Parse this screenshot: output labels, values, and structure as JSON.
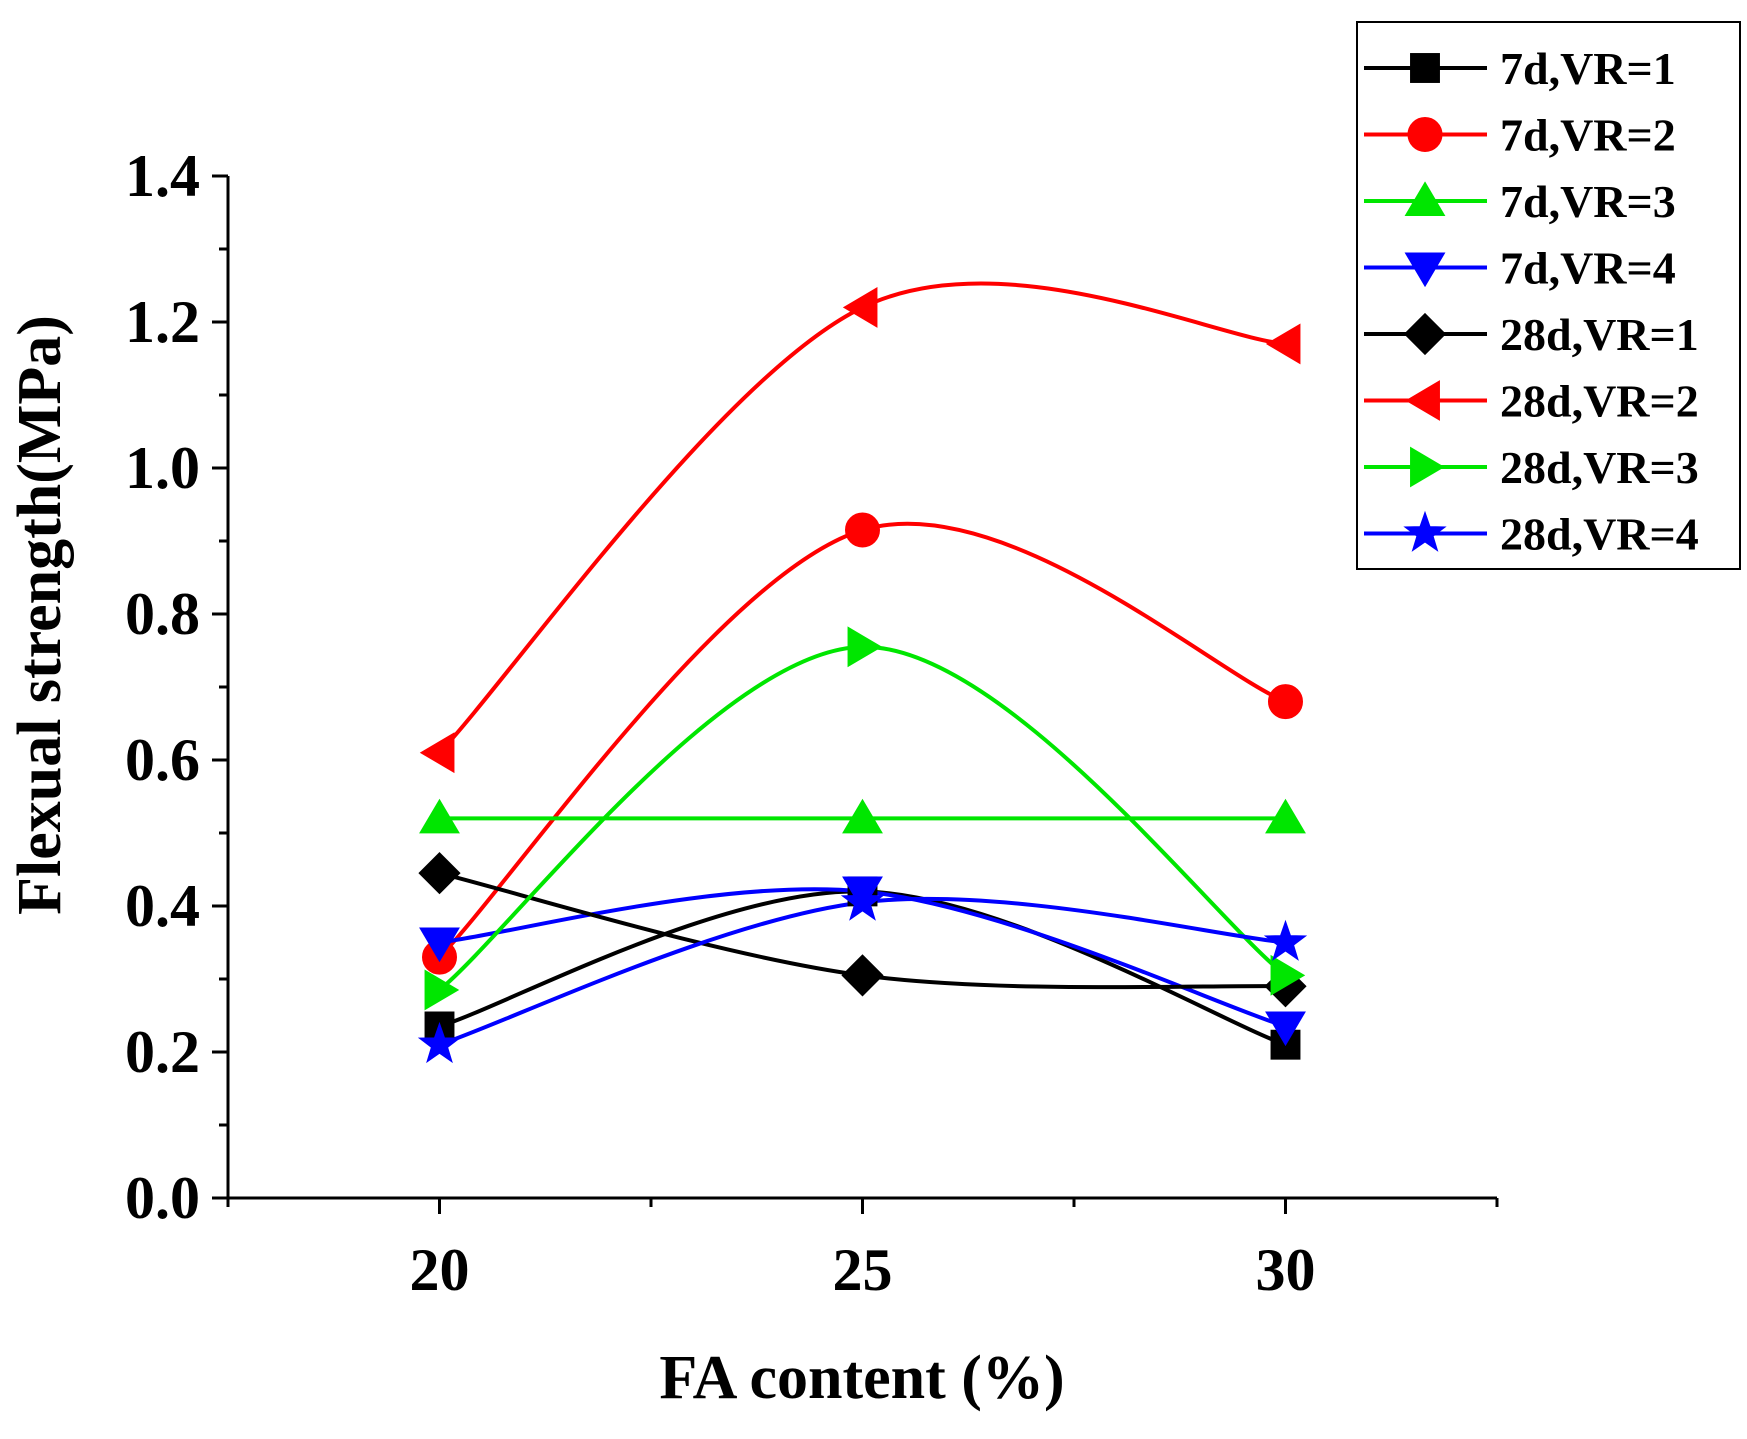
{
  "chart_data": {
    "type": "line",
    "title": "",
    "xlabel": "FA content (%)",
    "ylabel": "Flexual strength(MPa)",
    "x": [
      20,
      25,
      30
    ],
    "xlim": [
      17.5,
      32.5
    ],
    "ylim": [
      0,
      1.4
    ],
    "xticks": [
      20,
      25,
      30
    ],
    "xtick_labels": [
      "20",
      "25",
      "30"
    ],
    "yticks": [
      0.0,
      0.2,
      0.4,
      0.6,
      0.8,
      1.0,
      1.2,
      1.4
    ],
    "ytick_labels": [
      "0.0",
      "0.2",
      "0.4",
      "0.6",
      "0.8",
      "1.0",
      "1.2",
      "1.4"
    ],
    "grid": false,
    "legend_position": "top-right",
    "series": [
      {
        "name": "7d,VR=1",
        "values": [
          0.235,
          0.42,
          0.21
        ],
        "color": "#000000",
        "marker": "square"
      },
      {
        "name": "7d,VR=2",
        "values": [
          0.33,
          0.915,
          0.68
        ],
        "color": "#ff0000",
        "marker": "circle"
      },
      {
        "name": "7d,VR=3",
        "values": [
          0.52,
          0.52,
          0.52
        ],
        "color": "#00e600",
        "marker": "triangle-up"
      },
      {
        "name": "7d,VR=4",
        "values": [
          0.35,
          0.42,
          0.235
        ],
        "color": "#0000ff",
        "marker": "triangle-down"
      },
      {
        "name": "28d,VR=1",
        "values": [
          0.445,
          0.305,
          0.29
        ],
        "color": "#000000",
        "marker": "diamond"
      },
      {
        "name": "28d,VR=2",
        "values": [
          0.61,
          1.22,
          1.17
        ],
        "color": "#ff0000",
        "marker": "triangle-left"
      },
      {
        "name": "28d,VR=3",
        "values": [
          0.285,
          0.755,
          0.305
        ],
        "color": "#00e600",
        "marker": "triangle-right"
      },
      {
        "name": "28d,VR=4",
        "values": [
          0.21,
          0.405,
          0.35
        ],
        "color": "#0000ff",
        "marker": "star"
      }
    ]
  }
}
